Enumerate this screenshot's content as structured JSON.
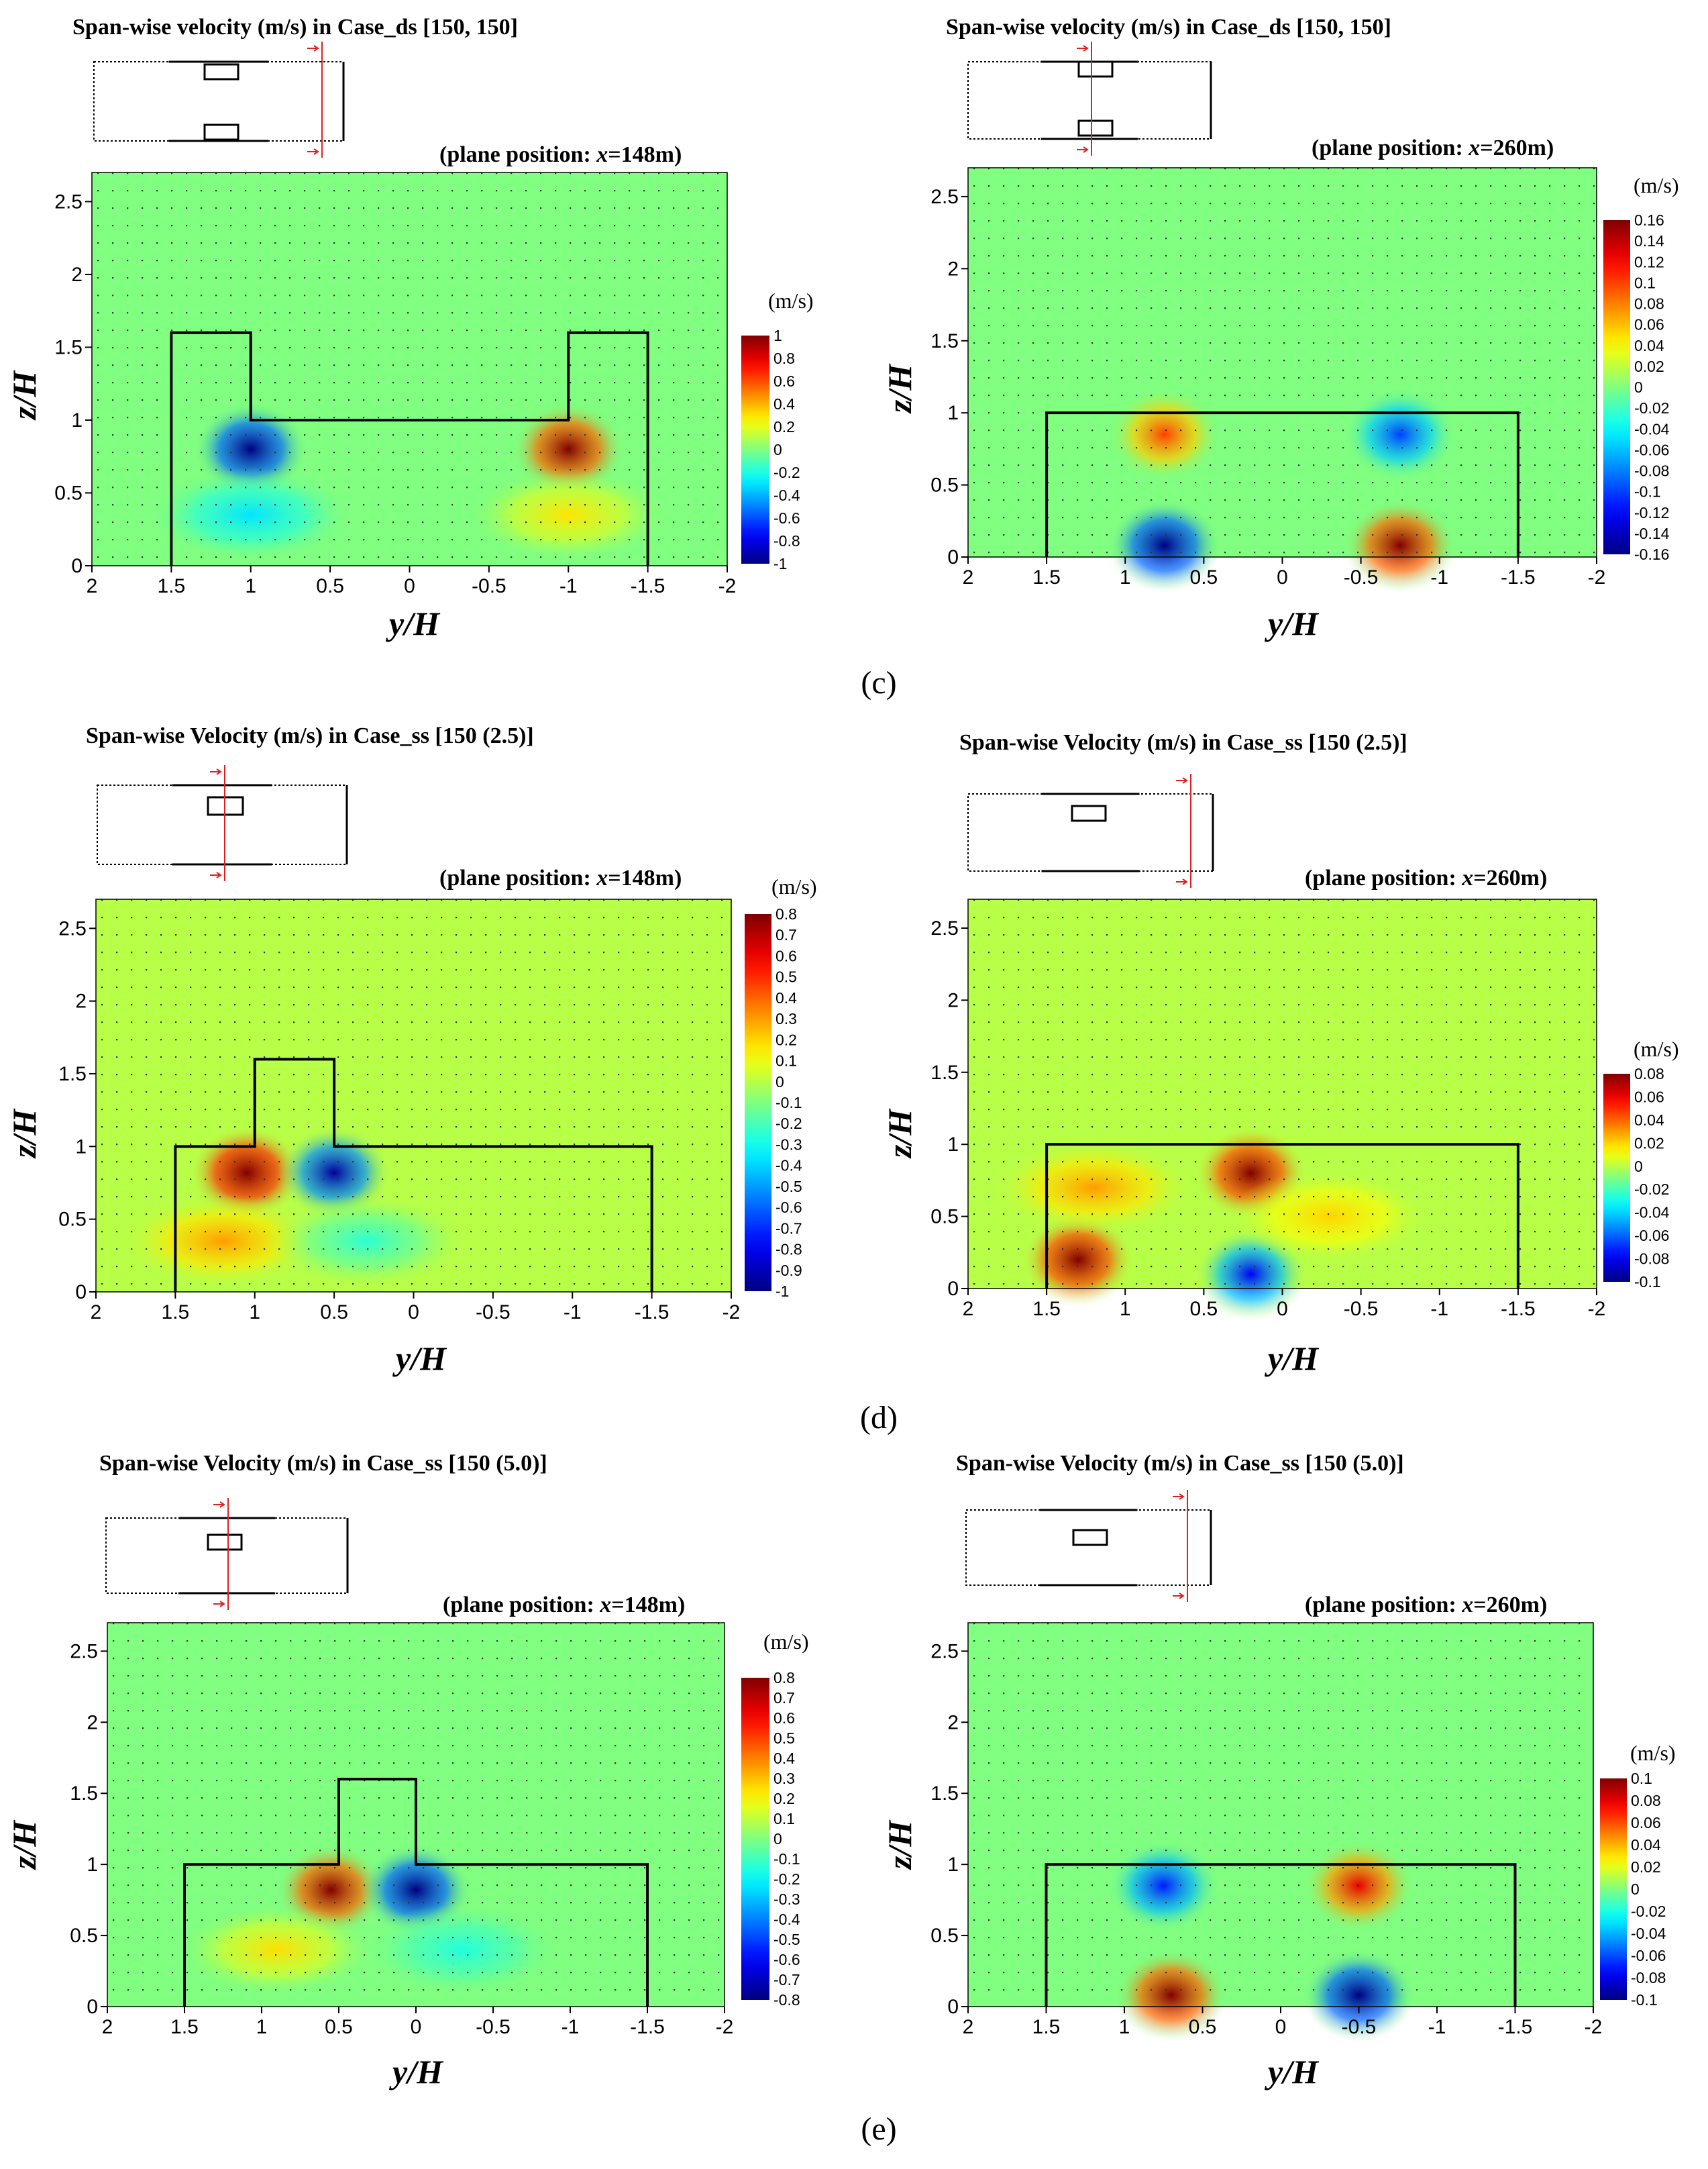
{
  "common": {
    "x_axis_label": "y/H",
    "y_axis_label": "z/H",
    "colorbar_unit": "(m/s)",
    "plane_prefix": "(plane position: ",
    "plane_var": "x",
    "x_tick_labels": [
      "2",
      "1.5",
      "1",
      "0.5",
      "0",
      "-0.5",
      "-1",
      "-1.5",
      "-2"
    ],
    "y_tick_labels": [
      "0",
      "0.5",
      "1",
      "1.5",
      "2",
      "2.5"
    ]
  },
  "captions": [
    "(c)",
    "(d)",
    "(e)"
  ],
  "chart_data": [
    {
      "type": "heatmap",
      "title": "Span-wise velocity (m/s) in Case_ds [150, 150]",
      "plane_position": "=148m",
      "xlabel": "y/H",
      "ylabel": "z/H",
      "xlim": [
        2,
        -2
      ],
      "ylim": [
        0,
        2.7
      ],
      "colorbar": {
        "unit": "(m/s)",
        "min": -1,
        "max": 1,
        "ticks": [
          "1",
          "0.8",
          "0.6",
          "0.4",
          "0.2",
          "0",
          "-0.2",
          "-0.4",
          "-0.6",
          "-0.8",
          "-1"
        ]
      },
      "outline": [
        [
          1.5,
          0
        ],
        [
          1.5,
          1.6
        ],
        [
          1.0,
          1.6
        ],
        [
          1.0,
          1.0
        ],
        [
          -1.0,
          1.0
        ],
        [
          -1.0,
          1.6
        ],
        [
          -1.5,
          1.6
        ],
        [
          -1.5,
          0
        ]
      ],
      "extremes": [
        {
          "y": 1.0,
          "z": 0.8,
          "value": -1.0
        },
        {
          "y": -1.0,
          "z": 0.8,
          "value": 1.0
        },
        {
          "y": 1.0,
          "z": 0.35,
          "value": -0.3
        },
        {
          "y": -1.0,
          "z": 0.35,
          "value": 0.3
        }
      ]
    },
    {
      "type": "heatmap",
      "title": "Span-wise velocity (m/s) in Case_ds [150, 150]",
      "plane_position": "=260m",
      "xlabel": "y/H",
      "ylabel": "z/H",
      "xlim": [
        2,
        -2
      ],
      "ylim": [
        0,
        2.7
      ],
      "colorbar": {
        "unit": "(m/s)",
        "min": -0.16,
        "max": 0.16,
        "ticks": [
          "0.16",
          "0.14",
          "0.12",
          "0.1",
          "0.08",
          "0.06",
          "0.04",
          "0.02",
          "0",
          "-0.02",
          "-0.04",
          "-0.06",
          "-0.08",
          "-0.1",
          "-0.12",
          "-0.14",
          "-0.16"
        ]
      },
      "outline": [
        [
          1.5,
          0
        ],
        [
          1.5,
          1.0
        ],
        [
          -1.5,
          1.0
        ],
        [
          -1.5,
          0
        ]
      ],
      "extremes": [
        {
          "y": 0.75,
          "z": 0.85,
          "value": 0.1
        },
        {
          "y": -0.75,
          "z": 0.85,
          "value": -0.1
        },
        {
          "y": 0.75,
          "z": 0.08,
          "value": -0.16
        },
        {
          "y": -0.75,
          "z": 0.08,
          "value": 0.16
        }
      ]
    },
    {
      "type": "heatmap",
      "title": "Span-wise Velocity (m/s) in Case_ss [150 (2.5)]",
      "plane_position": "=148m",
      "xlabel": "y/H",
      "ylabel": "z/H",
      "xlim": [
        2,
        -2
      ],
      "ylim": [
        0,
        2.7
      ],
      "colorbar": {
        "unit": "(m/s)",
        "min": -1,
        "max": 0.8,
        "ticks": [
          "0.8",
          "0.7",
          "0.6",
          "0.5",
          "0.4",
          "0.3",
          "0.2",
          "0.1",
          "0",
          "-0.1",
          "-0.2",
          "-0.3",
          "-0.4",
          "-0.5",
          "-0.6",
          "-0.7",
          "-0.8",
          "-0.9",
          "-1"
        ]
      },
      "outline": [
        [
          1.5,
          0
        ],
        [
          1.5,
          1.0
        ],
        [
          1.0,
          1.0
        ],
        [
          1.0,
          1.6
        ],
        [
          0.5,
          1.6
        ],
        [
          0.5,
          1.0
        ],
        [
          -1.5,
          1.0
        ],
        [
          -1.5,
          0
        ]
      ],
      "extremes": [
        {
          "y": 1.05,
          "z": 0.82,
          "value": 0.9
        },
        {
          "y": 0.5,
          "z": 0.82,
          "value": -0.95
        },
        {
          "y": 1.2,
          "z": 0.35,
          "value": 0.3
        },
        {
          "y": 0.3,
          "z": 0.35,
          "value": -0.25
        }
      ]
    },
    {
      "type": "heatmap",
      "title": "Span-wise Velocity (m/s) in Case_ss [150 (2.5)]",
      "plane_position": "=260m",
      "xlabel": "y/H",
      "ylabel": "z/H",
      "xlim": [
        2,
        -2
      ],
      "ylim": [
        0,
        2.7
      ],
      "colorbar": {
        "unit": "(m/s)",
        "min": -0.1,
        "max": 0.08,
        "ticks": [
          "0.08",
          "0.06",
          "0.04",
          "0.02",
          "0",
          "-0.02",
          "-0.04",
          "-0.06",
          "-0.08",
          "-0.1"
        ]
      },
      "outline": [
        [
          1.5,
          0
        ],
        [
          1.5,
          1.0
        ],
        [
          -1.5,
          1.0
        ],
        [
          -1.5,
          0
        ]
      ],
      "extremes": [
        {
          "y": 0.2,
          "z": 0.8,
          "value": 0.08
        },
        {
          "y": 1.3,
          "z": 0.2,
          "value": 0.08
        },
        {
          "y": 0.2,
          "z": 0.1,
          "value": -0.08
        },
        {
          "y": 1.2,
          "z": 0.7,
          "value": 0.03
        },
        {
          "y": -0.3,
          "z": 0.5,
          "value": 0.02
        }
      ]
    },
    {
      "type": "heatmap",
      "title": "Span-wise Velocity (m/s) in Case_ss [150 (5.0)]",
      "plane_position": "=148m",
      "xlabel": "y/H",
      "ylabel": "z/H",
      "xlim": [
        2,
        -2
      ],
      "ylim": [
        0,
        2.7
      ],
      "colorbar": {
        "unit": "(m/s)",
        "min": -0.8,
        "max": 0.8,
        "ticks": [
          "0.8",
          "0.7",
          "0.6",
          "0.5",
          "0.4",
          "0.3",
          "0.2",
          "0.1",
          "0",
          "-0.1",
          "-0.2",
          "-0.3",
          "-0.4",
          "-0.5",
          "-0.6",
          "-0.7",
          "-0.8"
        ]
      },
      "outline": [
        [
          1.5,
          0
        ],
        [
          1.5,
          1.0
        ],
        [
          0.5,
          1.0
        ],
        [
          0.5,
          1.6
        ],
        [
          0.0,
          1.6
        ],
        [
          0.0,
          1.0
        ],
        [
          -1.5,
          1.0
        ],
        [
          -1.5,
          0
        ]
      ],
      "extremes": [
        {
          "y": 0.55,
          "z": 0.82,
          "value": 0.8
        },
        {
          "y": 0.0,
          "z": 0.82,
          "value": -0.8
        },
        {
          "y": 0.9,
          "z": 0.4,
          "value": 0.25
        },
        {
          "y": -0.3,
          "z": 0.4,
          "value": -0.15
        }
      ]
    },
    {
      "type": "heatmap",
      "title": "Span-wise Velocity (m/s) in Case_ss [150 (5.0)]",
      "plane_position": "=260m",
      "xlabel": "y/H",
      "ylabel": "z/H",
      "xlim": [
        2,
        -2
      ],
      "ylim": [
        0,
        2.7
      ],
      "colorbar": {
        "unit": "(m/s)",
        "min": -0.1,
        "max": 0.1,
        "ticks": [
          "0.1",
          "0.08",
          "0.06",
          "0.04",
          "0.02",
          "0",
          "-0.02",
          "-0.04",
          "-0.06",
          "-0.08",
          "-0.1"
        ]
      },
      "outline": [
        [
          1.5,
          0
        ],
        [
          1.5,
          1.0
        ],
        [
          -1.5,
          1.0
        ],
        [
          -1.5,
          0
        ]
      ],
      "extremes": [
        {
          "y": 0.75,
          "z": 0.85,
          "value": -0.07
        },
        {
          "y": -0.5,
          "z": 0.85,
          "value": 0.08
        },
        {
          "y": 0.7,
          "z": 0.08,
          "value": 0.1
        },
        {
          "y": -0.5,
          "z": 0.08,
          "value": -0.1
        }
      ]
    }
  ]
}
